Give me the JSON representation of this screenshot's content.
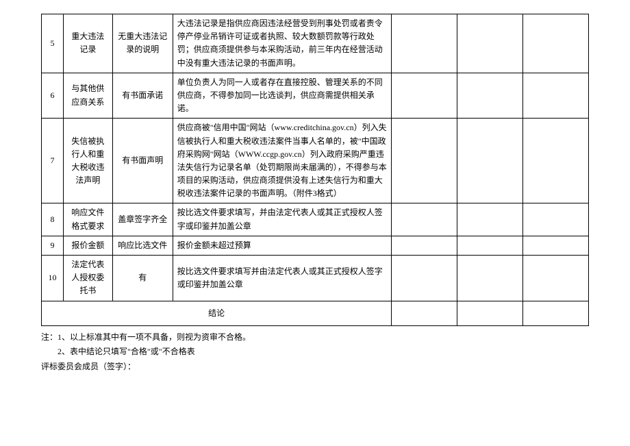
{
  "rows": [
    {
      "num": "5",
      "item": "重大违法记录",
      "criteria": "无重大违法记录的说明",
      "desc": "大违法记录是指供应商因违法经营受到刑事处罚或者责令停产停业吊销许可证或者执照、较大数额罚款等行政处罚；供应商须提供参与本采购活动，前三年内在经营活动中没有重大违法记录的书面声明。"
    },
    {
      "num": "6",
      "item": "与其他供应商关系",
      "criteria": "有书面承诺",
      "desc": "单位负责人为同一人或者存在直接控股、管理关系的不同供应商，不得参加同一比选谈判，供应商需提供相关承诺。"
    },
    {
      "num": "7",
      "item": "失信被执行人和重大税收违法声明",
      "criteria": "有书面声明",
      "desc": "供应商被\"信用中国\"网站（www.creditchina.gov.cn）列入失信被执行人和重大税收违法案件当事人名单的，被\"中国政府采购网\"网站（WWW.ccgp.gov.cn）列入政府采购严重违法失信行为记录名单（处罚期限尚未届满的），不得参与本项目的采购活动，供应商须提供没有上述失信行为和重大税收违法案件记录的书面声明。（附件3格式）"
    },
    {
      "num": "8",
      "item": "响应文件格式要求",
      "criteria": "盖章签字齐全",
      "desc": "按比选文件要求填写，并由法定代表人或其正式授权人签字或印鉴并加盖公章"
    },
    {
      "num": "9",
      "item": "报价金额",
      "criteria": "响应比选文件",
      "desc": "报价金额未超过预算"
    },
    {
      "num": "10",
      "item": "法定代表人授权委托书",
      "criteria": "有",
      "desc": "按比选文件要求填写并由法定代表人或其正式授权人签字或印鉴并加盖公章"
    }
  ],
  "conclusion_label": "结论",
  "notes": {
    "n1": "注：1、以上标准其中有一项不具备，则视为资审不合格。",
    "n2": "2、表中结论只填写\"合格\"或\"不合格表",
    "sig": "评标委员会成员（签字）："
  }
}
